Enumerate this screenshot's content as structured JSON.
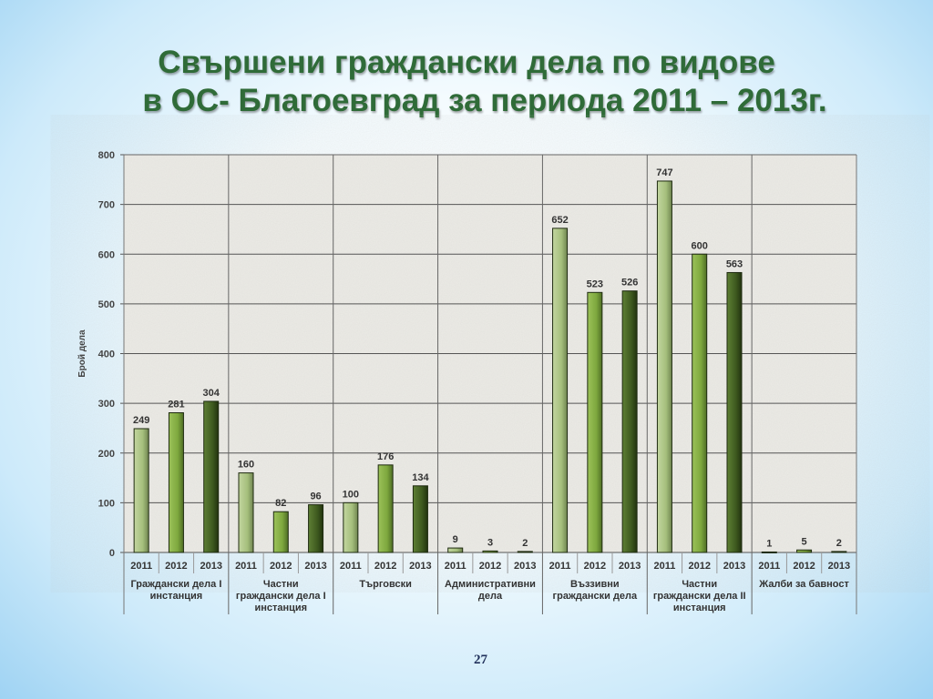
{
  "title": {
    "line1": "Свършени граждански дела по видове",
    "line2": "в ОС- Благоевград  за периода 2011 – 2013г."
  },
  "page_number": "27",
  "colors": {
    "title": "#2f6b38",
    "bar_2011": "#a9c281",
    "bar_2012": "#7ea83e",
    "bar_2013": "#3e5a1f",
    "grid": "#555555",
    "plot_bg": "#ecebe6"
  },
  "chart_data": {
    "type": "bar",
    "ylabel": "Брой дела",
    "ylim": [
      0,
      800
    ],
    "yticks": [
      0,
      100,
      200,
      300,
      400,
      500,
      600,
      700,
      800
    ],
    "grid": true,
    "years": [
      "2011",
      "2012",
      "2013"
    ],
    "groups": [
      {
        "label": [
          "Граждански дела I",
          "инстанция"
        ],
        "values": [
          249,
          281,
          304
        ]
      },
      {
        "label": [
          "Частни",
          "граждански дела I",
          "инстанция"
        ],
        "values": [
          160,
          82,
          96
        ]
      },
      {
        "label": [
          "Търговски"
        ],
        "values": [
          100,
          176,
          134
        ]
      },
      {
        "label": [
          "Административни",
          "дела"
        ],
        "values": [
          9,
          3,
          2
        ]
      },
      {
        "label": [
          "Въззивни",
          "граждански дела"
        ],
        "values": [
          652,
          523,
          526
        ]
      },
      {
        "label": [
          "Частни",
          "граждански дела II",
          "инстанция"
        ],
        "values": [
          747,
          600,
          563
        ]
      },
      {
        "label": [
          "Жалби за бавност"
        ],
        "values": [
          1,
          5,
          2
        ]
      }
    ]
  }
}
